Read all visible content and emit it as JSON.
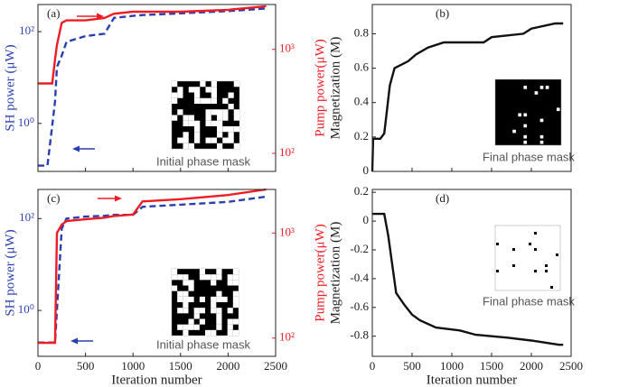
{
  "chart_data": [
    {
      "type": "line",
      "panel_label": "(a)",
      "log_y": true,
      "x": [
        0,
        100,
        150,
        180,
        200,
        250,
        300,
        500,
        700,
        800,
        1000,
        1100,
        1500,
        2000,
        2400
      ],
      "xlim": [
        0,
        2500
      ],
      "xticks": [
        0,
        500,
        1000,
        1500,
        2000,
        2500
      ],
      "show_xtick_labels": false,
      "ylabel": "SH power (μW)",
      "ylim": [
        0.09,
        390
      ],
      "yticks": [
        {
          "value": 1,
          "label": "10⁰"
        },
        {
          "value": 100,
          "label": "10²"
        }
      ],
      "y2label": "Pump power(μW)",
      "y2lim": [
        67,
        2700
      ],
      "y2ticks": [
        {
          "value": 100,
          "label": "10²"
        },
        {
          "value": 1000,
          "label": "10³"
        }
      ],
      "series": [
        {
          "color": "#2b3fae",
          "style": "dashed",
          "values": [
            0.12,
            0.12,
            0.9,
            3,
            17,
            30,
            60,
            80,
            90,
            200,
            220,
            230,
            250,
            280,
            320
          ]
        },
        {
          "color": "#ee1c24",
          "style": "solid",
          "axis": "y2",
          "values": [
            470,
            470,
            470,
            800,
            1100,
            1800,
            1900,
            1900,
            2000,
            2200,
            2300,
            2300,
            2300,
            2400,
            2600
          ]
        }
      ],
      "inset_label": "Initial phase mask"
    },
    {
      "type": "line",
      "panel_label": "(b)",
      "x": [
        0,
        10,
        100,
        150,
        170,
        220,
        280,
        450,
        550,
        700,
        900,
        1400,
        1500,
        1900,
        2000,
        2300,
        2400
      ],
      "xlim": [
        0,
        2500
      ],
      "xticks": [
        0,
        500,
        1000,
        1500,
        2000,
        2500
      ],
      "show_xtick_labels": false,
      "ylabel": "Magnetization (M)",
      "ylim": [
        0,
        0.97
      ],
      "yticks": [
        0,
        0.2,
        0.4,
        0.6,
        0.8
      ],
      "series": [
        {
          "color": "#111111",
          "style": "solid",
          "values": [
            0,
            0.19,
            0.19,
            0.22,
            0.3,
            0.5,
            0.6,
            0.64,
            0.68,
            0.72,
            0.75,
            0.75,
            0.78,
            0.8,
            0.83,
            0.86,
            0.86
          ]
        }
      ],
      "inset_label": "Final phase mask"
    },
    {
      "type": "line",
      "panel_label": "(c)",
      "log_y": true,
      "x": [
        0,
        100,
        150,
        180,
        200,
        250,
        300,
        500,
        700,
        800,
        1000,
        1100,
        1500,
        2000,
        2400
      ],
      "xlim": [
        0,
        2500
      ],
      "xticks": [
        0,
        500,
        1000,
        1500,
        2000,
        2500
      ],
      "show_xtick_labels": true,
      "xlabel": "Iteration number",
      "ylabel": "SH power (μW)",
      "ylim": [
        0.1,
        430
      ],
      "yticks": [
        {
          "value": 1,
          "label": "10⁰"
        },
        {
          "value": 100,
          "label": "10²"
        }
      ],
      "y2label": "Pump power(μW)",
      "y2lim": [
        67,
        2600
      ],
      "y2ticks": [
        {
          "value": 100,
          "label": "10²"
        },
        {
          "value": 1000,
          "label": "10³"
        }
      ],
      "series": [
        {
          "color": "#2b3fae",
          "style": "dashed",
          "values": [
            0.2,
            0.2,
            0.2,
            0.2,
            1,
            60,
            100,
            110,
            115,
            120,
            120,
            180,
            200,
            230,
            300
          ]
        },
        {
          "color": "#ee1c24",
          "style": "solid",
          "axis": "y2",
          "values": [
            90,
            90,
            90,
            90,
            1000,
            1200,
            1300,
            1350,
            1400,
            1450,
            1500,
            2000,
            2100,
            2300,
            2600
          ]
        }
      ],
      "inset_label": "Initial phase mask"
    },
    {
      "type": "line",
      "panel_label": "(d)",
      "x": [
        0,
        150,
        200,
        250,
        300,
        400,
        500,
        600,
        800,
        1100,
        1300,
        1700,
        2000,
        2350,
        2400
      ],
      "xlim": [
        0,
        2500
      ],
      "xticks": [
        0,
        500,
        1000,
        1500,
        2000,
        2500
      ],
      "show_xtick_labels": true,
      "xlabel": "Iteration number",
      "ylabel": "Magnetization (M)",
      "ylim": [
        -0.94,
        0.22
      ],
      "yticks": [
        -0.8,
        -0.6,
        -0.4,
        -0.2,
        0,
        0.2
      ],
      "series": [
        {
          "color": "#111111",
          "style": "solid",
          "values": [
            0.05,
            0.05,
            -0.1,
            -0.3,
            -0.5,
            -0.58,
            -0.65,
            -0.69,
            -0.74,
            -0.76,
            -0.79,
            -0.81,
            -0.83,
            -0.86,
            -0.86
          ]
        }
      ],
      "inset_label": "Final phase mask"
    }
  ]
}
